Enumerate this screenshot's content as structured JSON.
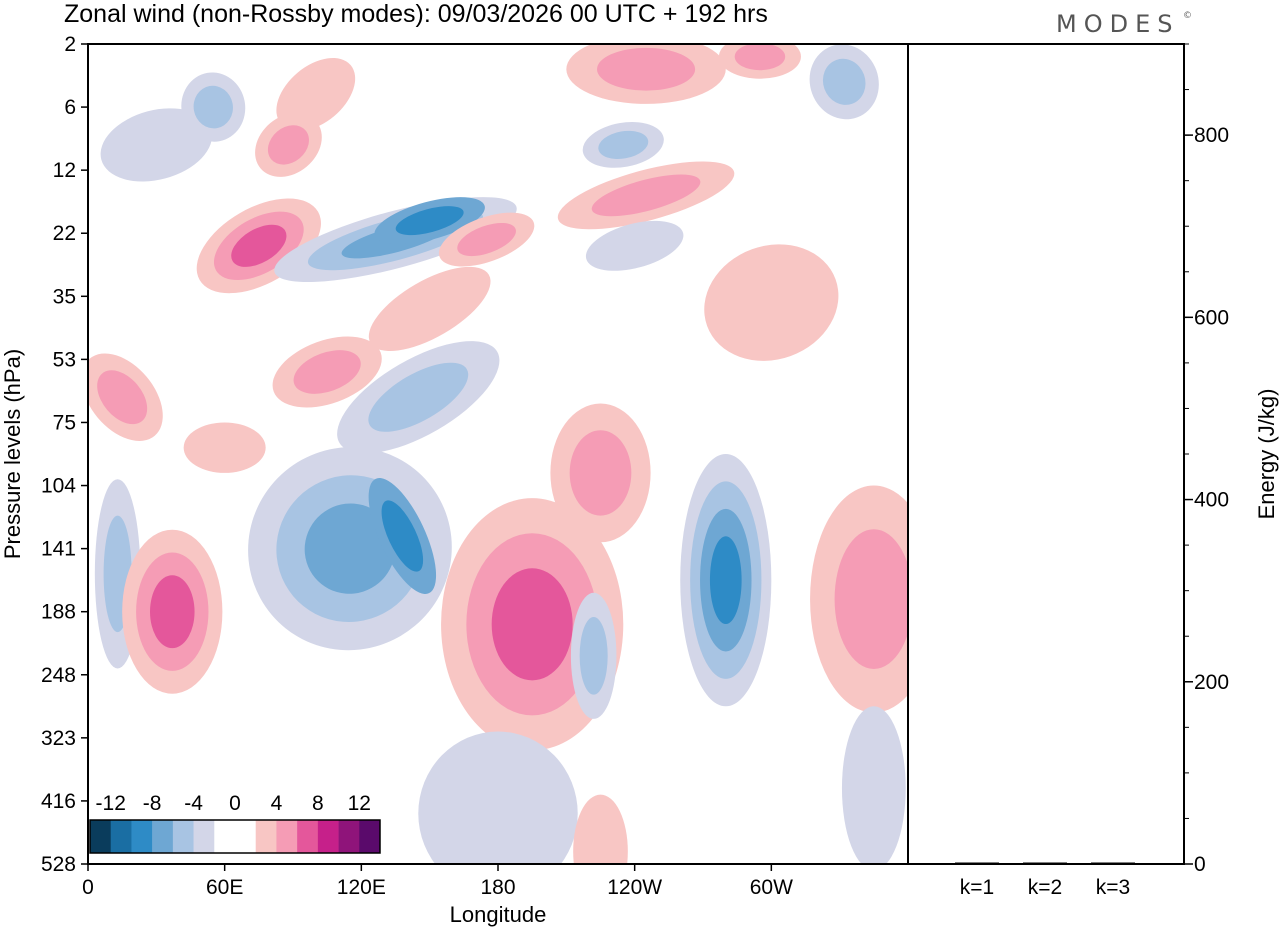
{
  "chart_data": {
    "type": "heatmap",
    "title": "Zonal wind (non-Rossby modes):  09/03/2026  00 UTC  + 192 hrs",
    "brand": "MODES",
    "brand_mark": "©",
    "xlabel": "Longitude",
    "ylabel": "Pressure levels (hPa)",
    "ylabel_right": "Energy (J/kg)",
    "x_ticks": [
      {
        "lon": 0,
        "label": "0"
      },
      {
        "lon": 60,
        "label": "60E"
      },
      {
        "lon": 120,
        "label": "120E"
      },
      {
        "lon": 180,
        "label": "180"
      },
      {
        "lon": 240,
        "label": "120W"
      },
      {
        "lon": 300,
        "label": "60W"
      }
    ],
    "xlim": [
      0,
      360
    ],
    "y_levels": [
      "2",
      "6",
      "12",
      "22",
      "35",
      "53",
      "75",
      "104",
      "141",
      "188",
      "248",
      "323",
      "416",
      "528"
    ],
    "energy_axis": {
      "ylim": [
        0,
        900
      ],
      "ticks": [
        0,
        200,
        400,
        600,
        800
      ],
      "minor_step": 50
    },
    "energy_bars": {
      "categories": [
        "k=1",
        "k=2",
        "k=3"
      ],
      "values": [
        1,
        1,
        1
      ]
    },
    "colorbar": {
      "labels": [
        "-12",
        "-8",
        "-4",
        "0",
        "4",
        "8",
        "12"
      ],
      "colors": [
        "#0a3c5c",
        "#1a6ea3",
        "#2e8bc6",
        "#6ea7d3",
        "#a8c4e3",
        "#d3d6e8",
        "#ffffff",
        "#ffffff",
        "#f8c6c4",
        "#f59cb5",
        "#e4579b",
        "#c6208a",
        "#8f147a",
        "#5a0a6b"
      ]
    },
    "contour_regions": [
      {
        "cx": 30,
        "cy": 1.6,
        "rx": 25,
        "ry": 0.55,
        "rot": -15,
        "levels": [
          "#d3d6e8"
        ]
      },
      {
        "cx": 55,
        "cy": 1.0,
        "rx": 14,
        "ry": 0.55,
        "rot": -10,
        "levels": [
          "#d3d6e8",
          "#a8c4e3"
        ]
      },
      {
        "cx": 100,
        "cy": 0.8,
        "rx": 20,
        "ry": 0.45,
        "rot": -40,
        "levels": [
          "#f8c6c4"
        ]
      },
      {
        "cx": 88,
        "cy": 1.6,
        "rx": 16,
        "ry": 0.45,
        "rot": -40,
        "levels": [
          "#f8c6c4",
          "#f59cb5"
        ]
      },
      {
        "cx": 245,
        "cy": 0.4,
        "rx": 35,
        "ry": 0.55,
        "rot": 0,
        "levels": [
          "#f8c6c4",
          "#f59cb5"
        ]
      },
      {
        "cx": 295,
        "cy": 0.2,
        "rx": 18,
        "ry": 0.35,
        "rot": 0,
        "levels": [
          "#f8c6c4",
          "#f59cb5"
        ]
      },
      {
        "cx": 332,
        "cy": 0.6,
        "rx": 15,
        "ry": 0.6,
        "rot": -20,
        "levels": [
          "#d3d6e8",
          "#a8c4e3"
        ]
      },
      {
        "cx": 75,
        "cy": 3.2,
        "rx": 30,
        "ry": 0.6,
        "rot": -30,
        "levels": [
          "#f8c6c4",
          "#f59cb5",
          "#e4579b"
        ]
      },
      {
        "cx": 135,
        "cy": 3.1,
        "rx": 55,
        "ry": 0.45,
        "rot": -15,
        "levels": [
          "#d3d6e8",
          "#a8c4e3",
          "#6ea7d3"
        ]
      },
      {
        "cx": 150,
        "cy": 2.8,
        "rx": 25,
        "ry": 0.3,
        "rot": -15,
        "levels": [
          "#6ea7d3",
          "#2e8bc6"
        ]
      },
      {
        "cx": 175,
        "cy": 3.1,
        "rx": 22,
        "ry": 0.35,
        "rot": -20,
        "levels": [
          "#f8c6c4",
          "#f59cb5"
        ]
      },
      {
        "cx": 150,
        "cy": 4.2,
        "rx": 30,
        "ry": 0.45,
        "rot": -30,
        "levels": [
          "#f8c6c4"
        ]
      },
      {
        "cx": 245,
        "cy": 2.4,
        "rx": 40,
        "ry": 0.4,
        "rot": -15,
        "levels": [
          "#f8c6c4",
          "#f59cb5"
        ]
      },
      {
        "cx": 235,
        "cy": 1.6,
        "rx": 18,
        "ry": 0.35,
        "rot": -10,
        "levels": [
          "#d3d6e8",
          "#a8c4e3"
        ]
      },
      {
        "cx": 240,
        "cy": 3.2,
        "rx": 22,
        "ry": 0.35,
        "rot": -15,
        "levels": [
          "#d3d6e8"
        ]
      },
      {
        "cx": 300,
        "cy": 4.1,
        "rx": 30,
        "ry": 0.9,
        "rot": -20,
        "levels": [
          "#f8c6c4"
        ]
      },
      {
        "cx": 15,
        "cy": 5.6,
        "rx": 14,
        "ry": 0.8,
        "rot": -40,
        "levels": [
          "#f8c6c4",
          "#f59cb5"
        ]
      },
      {
        "cx": 105,
        "cy": 5.2,
        "rx": 25,
        "ry": 0.5,
        "rot": -20,
        "levels": [
          "#f8c6c4",
          "#f59cb5"
        ]
      },
      {
        "cx": 145,
        "cy": 5.6,
        "rx": 40,
        "ry": 0.6,
        "rot": -30,
        "levels": [
          "#d3d6e8",
          "#a8c4e3"
        ]
      },
      {
        "cx": 60,
        "cy": 6.4,
        "rx": 18,
        "ry": 0.4,
        "rot": 0,
        "levels": [
          "#f8c6c4"
        ]
      },
      {
        "cx": 115,
        "cy": 8.0,
        "rx": 45,
        "ry": 1.6,
        "rot": -40,
        "levels": [
          "#d3d6e8",
          "#a8c4e3",
          "#6ea7d3"
        ]
      },
      {
        "cx": 138,
        "cy": 7.8,
        "rx": 10,
        "ry": 1.0,
        "rot": -25,
        "levels": [
          "#6ea7d3",
          "#2e8bc6"
        ]
      },
      {
        "cx": 13,
        "cy": 8.4,
        "rx": 10,
        "ry": 1.5,
        "rot": 0,
        "levels": [
          "#d3d6e8",
          "#a8c4e3"
        ]
      },
      {
        "cx": 37,
        "cy": 9.0,
        "rx": 22,
        "ry": 1.3,
        "rot": 0,
        "levels": [
          "#f8c6c4",
          "#f59cb5",
          "#e4579b"
        ]
      },
      {
        "cx": 195,
        "cy": 9.2,
        "rx": 40,
        "ry": 2.0,
        "rot": 0,
        "levels": [
          "#f8c6c4",
          "#f59cb5",
          "#e4579b"
        ]
      },
      {
        "cx": 225,
        "cy": 6.8,
        "rx": 22,
        "ry": 1.1,
        "rot": 0,
        "levels": [
          "#f8c6c4",
          "#f59cb5"
        ]
      },
      {
        "cx": 222,
        "cy": 9.7,
        "rx": 10,
        "ry": 1.0,
        "rot": 0,
        "levels": [
          "#d3d6e8",
          "#a8c4e3"
        ]
      },
      {
        "cx": 280,
        "cy": 8.5,
        "rx": 20,
        "ry": 2.0,
        "rot": 0,
        "levels": [
          "#d3d6e8",
          "#a8c4e3",
          "#6ea7d3",
          "#2e8bc6"
        ]
      },
      {
        "cx": 345,
        "cy": 8.8,
        "rx": 28,
        "ry": 1.8,
        "rot": 0,
        "levels": [
          "#f8c6c4",
          "#f59cb5"
        ]
      },
      {
        "cx": 180,
        "cy": 12.2,
        "rx": 35,
        "ry": 1.3,
        "rot": 0,
        "levels": [
          "#d3d6e8"
        ]
      },
      {
        "cx": 225,
        "cy": 12.8,
        "rx": 12,
        "ry": 0.9,
        "rot": 0,
        "levels": [
          "#f8c6c4"
        ]
      },
      {
        "cx": 345,
        "cy": 11.8,
        "rx": 14,
        "ry": 1.3,
        "rot": 0,
        "levels": [
          "#d3d6e8"
        ]
      }
    ]
  }
}
